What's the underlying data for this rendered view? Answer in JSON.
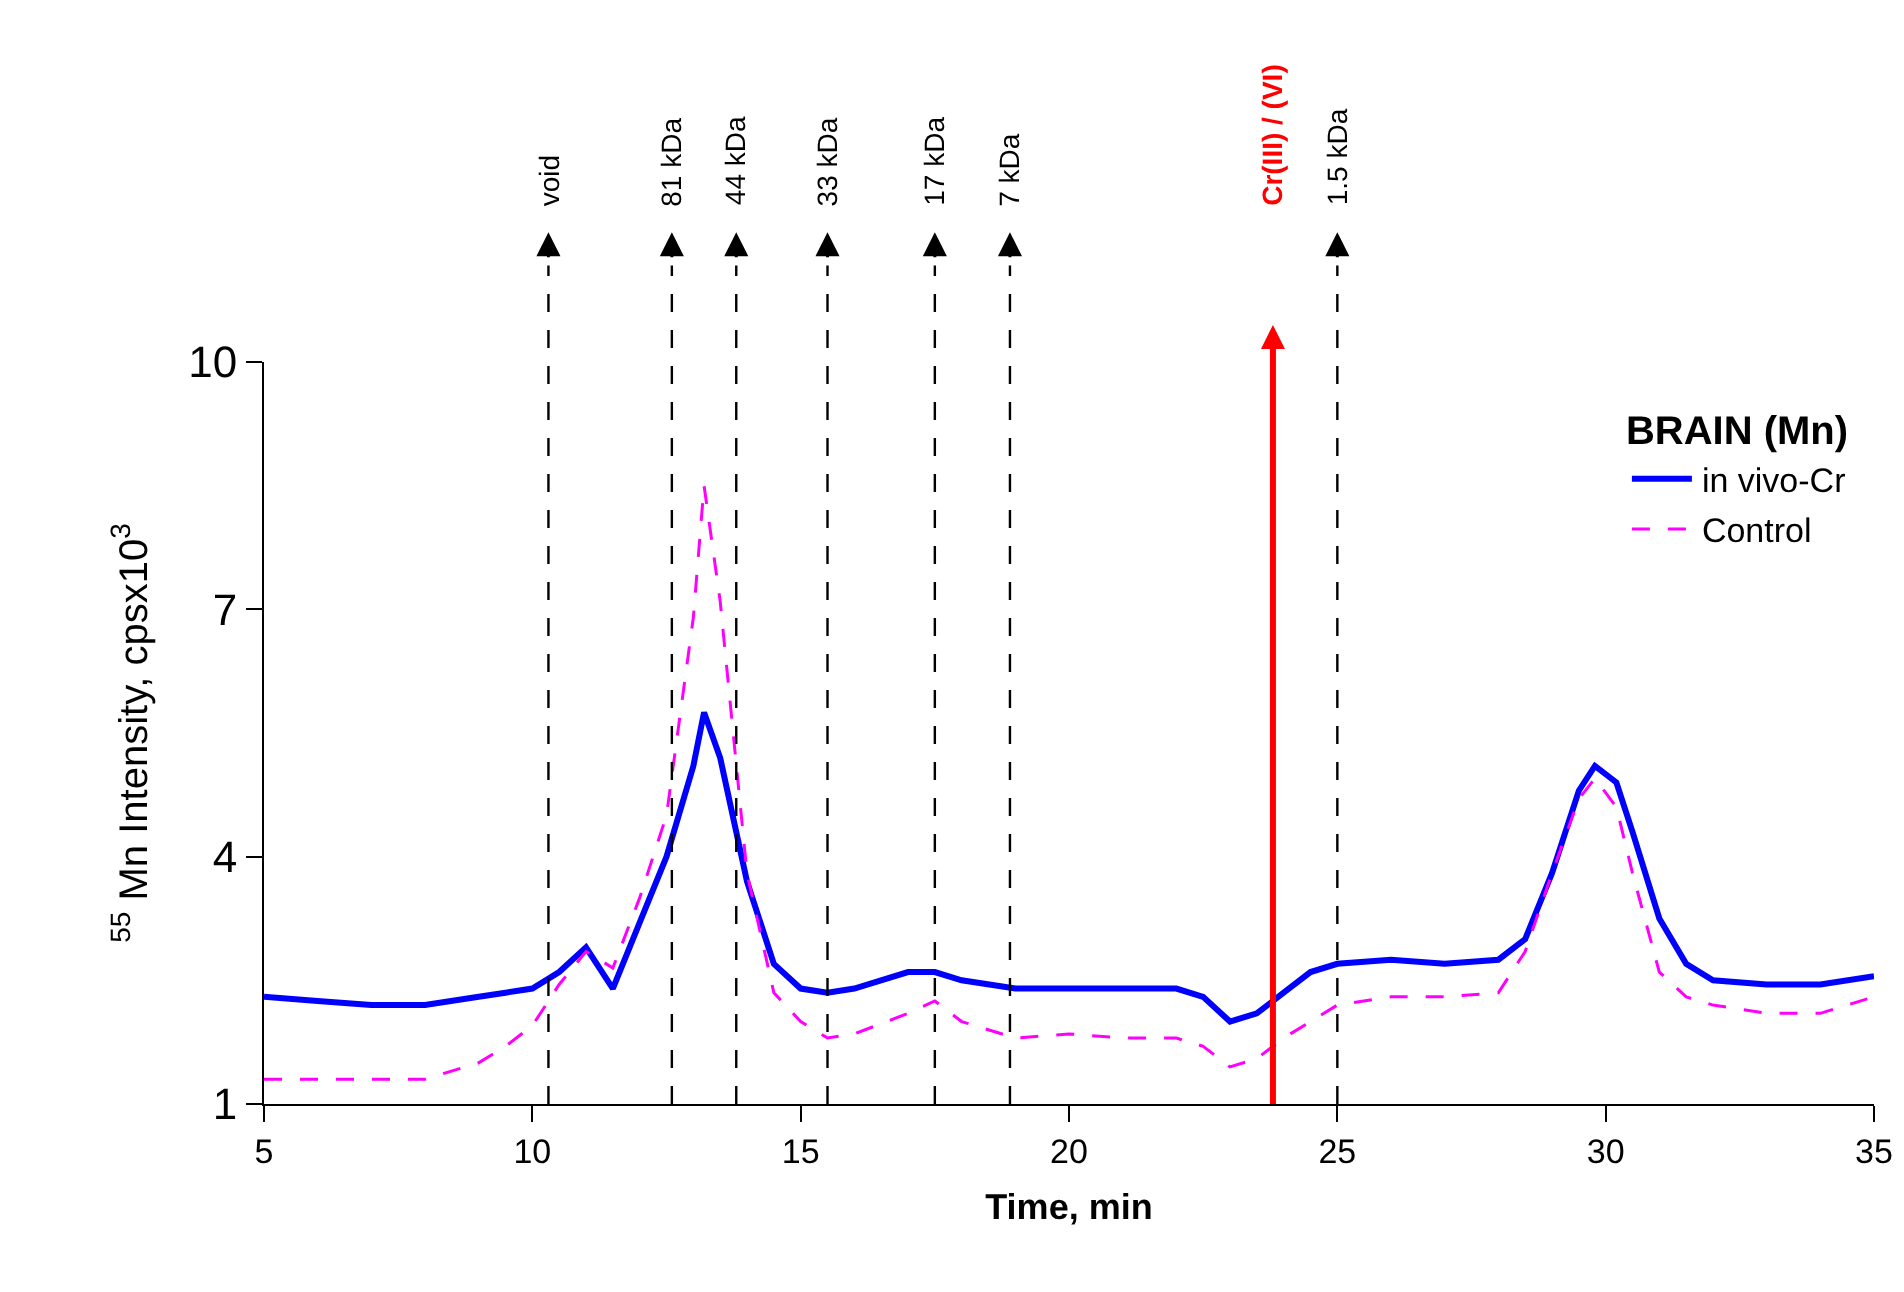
{
  "chart_data": {
    "type": "line",
    "xlabel": "Time, min",
    "ylabel": "$^{55}$ Mn Intensity, cpsx10$^{3}$",
    "legend_title": "BRAIN (Mn)",
    "legend": "top right",
    "grid": false,
    "marker": "none",
    "xlim": [
      5,
      35
    ],
    "xticks": [
      5,
      10,
      15,
      20,
      25,
      30,
      35
    ],
    "ylim": [
      1,
      10
    ],
    "yticks": [
      1,
      4,
      7,
      10
    ],
    "series": [
      {
        "name": "in vivo-Cr",
        "color": "#0000ff",
        "line_style": "solid",
        "x": [
          5,
          6,
          7,
          8,
          9,
          9.5,
          10,
          10.5,
          11,
          11.5,
          12,
          12.5,
          13,
          13.2,
          13.5,
          14,
          14.5,
          15,
          15.5,
          16,
          17,
          17.5,
          18,
          19,
          20,
          21,
          22,
          22.5,
          23,
          23.5,
          24,
          24.5,
          25,
          26,
          27,
          28,
          28.5,
          29,
          29.5,
          29.8,
          30.2,
          30.5,
          31,
          31.5,
          32,
          33,
          34,
          35
        ],
        "values": [
          2.3,
          2.25,
          2.2,
          2.2,
          2.3,
          2.35,
          2.4,
          2.6,
          2.9,
          2.4,
          3.2,
          4.0,
          5.1,
          5.75,
          5.2,
          3.7,
          2.7,
          2.4,
          2.35,
          2.4,
          2.6,
          2.6,
          2.5,
          2.4,
          2.4,
          2.4,
          2.4,
          2.3,
          2.0,
          2.1,
          2.35,
          2.6,
          2.7,
          2.75,
          2.7,
          2.75,
          3.0,
          3.8,
          4.8,
          5.1,
          4.9,
          4.3,
          3.25,
          2.7,
          2.5,
          2.45,
          2.45,
          2.55
        ]
      },
      {
        "name": "Control",
        "color": "#ff00ff",
        "line_style": "dashed",
        "x": [
          5,
          6,
          7,
          8,
          9,
          9.5,
          10,
          10.5,
          11,
          11.5,
          12,
          12.5,
          13,
          13.2,
          13.5,
          14,
          14.5,
          15,
          15.5,
          16,
          17,
          17.5,
          18,
          19,
          20,
          21,
          22,
          22.5,
          23,
          23.5,
          24,
          24.5,
          25,
          26,
          27,
          28,
          28.5,
          29,
          29.5,
          29.8,
          30.2,
          30.5,
          31,
          31.5,
          32,
          33,
          34,
          35
        ],
        "values": [
          1.3,
          1.3,
          1.3,
          1.3,
          1.5,
          1.7,
          1.95,
          2.45,
          2.85,
          2.65,
          3.5,
          4.5,
          6.9,
          8.5,
          7.1,
          3.8,
          2.35,
          2.0,
          1.8,
          1.85,
          2.1,
          2.25,
          2.0,
          1.8,
          1.85,
          1.8,
          1.8,
          1.7,
          1.45,
          1.55,
          1.8,
          2.0,
          2.2,
          2.3,
          2.3,
          2.35,
          2.85,
          3.8,
          4.7,
          4.95,
          4.6,
          3.8,
          2.6,
          2.3,
          2.2,
          2.1,
          2.1,
          2.3
        ]
      }
    ],
    "ref_lines": [
      {
        "axis": "x",
        "value": 10.3,
        "label": "void",
        "color": "#000000",
        "line_style": "dashed"
      },
      {
        "axis": "x",
        "value": 12.6,
        "label": "81 kDa",
        "color": "#000000",
        "line_style": "dashed"
      },
      {
        "axis": "x",
        "value": 13.8,
        "label": "44 kDa",
        "color": "#000000",
        "line_style": "dashed"
      },
      {
        "axis": "x",
        "value": 15.5,
        "label": "33 kDa",
        "color": "#000000",
        "line_style": "dashed"
      },
      {
        "axis": "x",
        "value": 17.5,
        "label": "17 kDa",
        "color": "#000000",
        "line_style": "dashed"
      },
      {
        "axis": "x",
        "value": 18.9,
        "label": "7 kDa",
        "color": "#000000",
        "line_style": "dashed"
      },
      {
        "axis": "x",
        "value": 23.8,
        "label": "Cr(III) / (VI)",
        "color": "#ff0000",
        "line_style": "solid"
      },
      {
        "axis": "x",
        "value": 25.0,
        "label": "1.5 kDa",
        "color": "#000000",
        "line_style": "dashed"
      }
    ]
  }
}
